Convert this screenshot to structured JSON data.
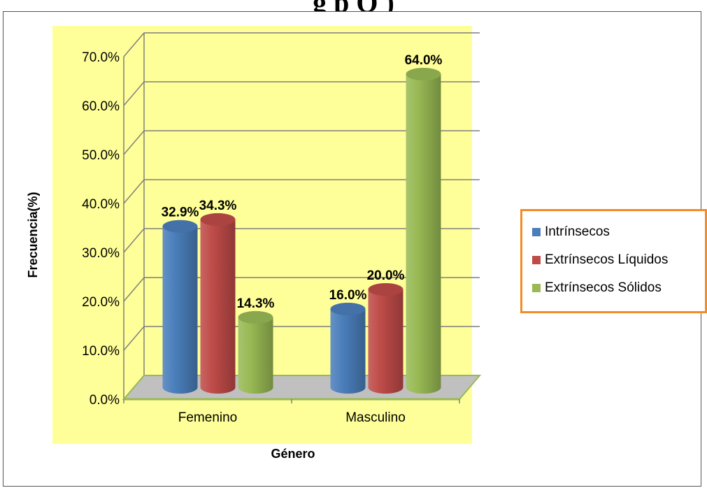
{
  "page_title": "g                                  p                Q           )",
  "chart_data": {
    "type": "bar",
    "categories": [
      "Femenino",
      "Masculino"
    ],
    "series": [
      {
        "name": "Intrínsecos",
        "values": [
          32.9,
          16.0
        ],
        "color": "#4a7ebb"
      },
      {
        "name": "Extrínsecos Líquidos",
        "values": [
          34.3,
          20.0
        ],
        "color": "#be4b48"
      },
      {
        "name": "Extrínsecos Sólidos",
        "values": [
          14.3,
          64.0
        ],
        "color": "#98b954"
      }
    ],
    "data_labels": [
      [
        "32.9%",
        "16.0%"
      ],
      [
        "34.3%",
        "20.0%"
      ],
      [
        "14.3%",
        "64.0%"
      ]
    ],
    "xlabel": "Género",
    "ylabel": "Frecuencia(%)",
    "ylim": [
      0,
      70
    ],
    "yticks": [
      "0.0%",
      "10.0%",
      "20.0%",
      "30.0%",
      "40.0%",
      "50.0%",
      "60.0%",
      "70.0%"
    ],
    "grid": true,
    "legend_position": "right",
    "plot_background": "#ffff99",
    "floor_color": "#c0c0c0",
    "style": "3d-cylinder"
  }
}
